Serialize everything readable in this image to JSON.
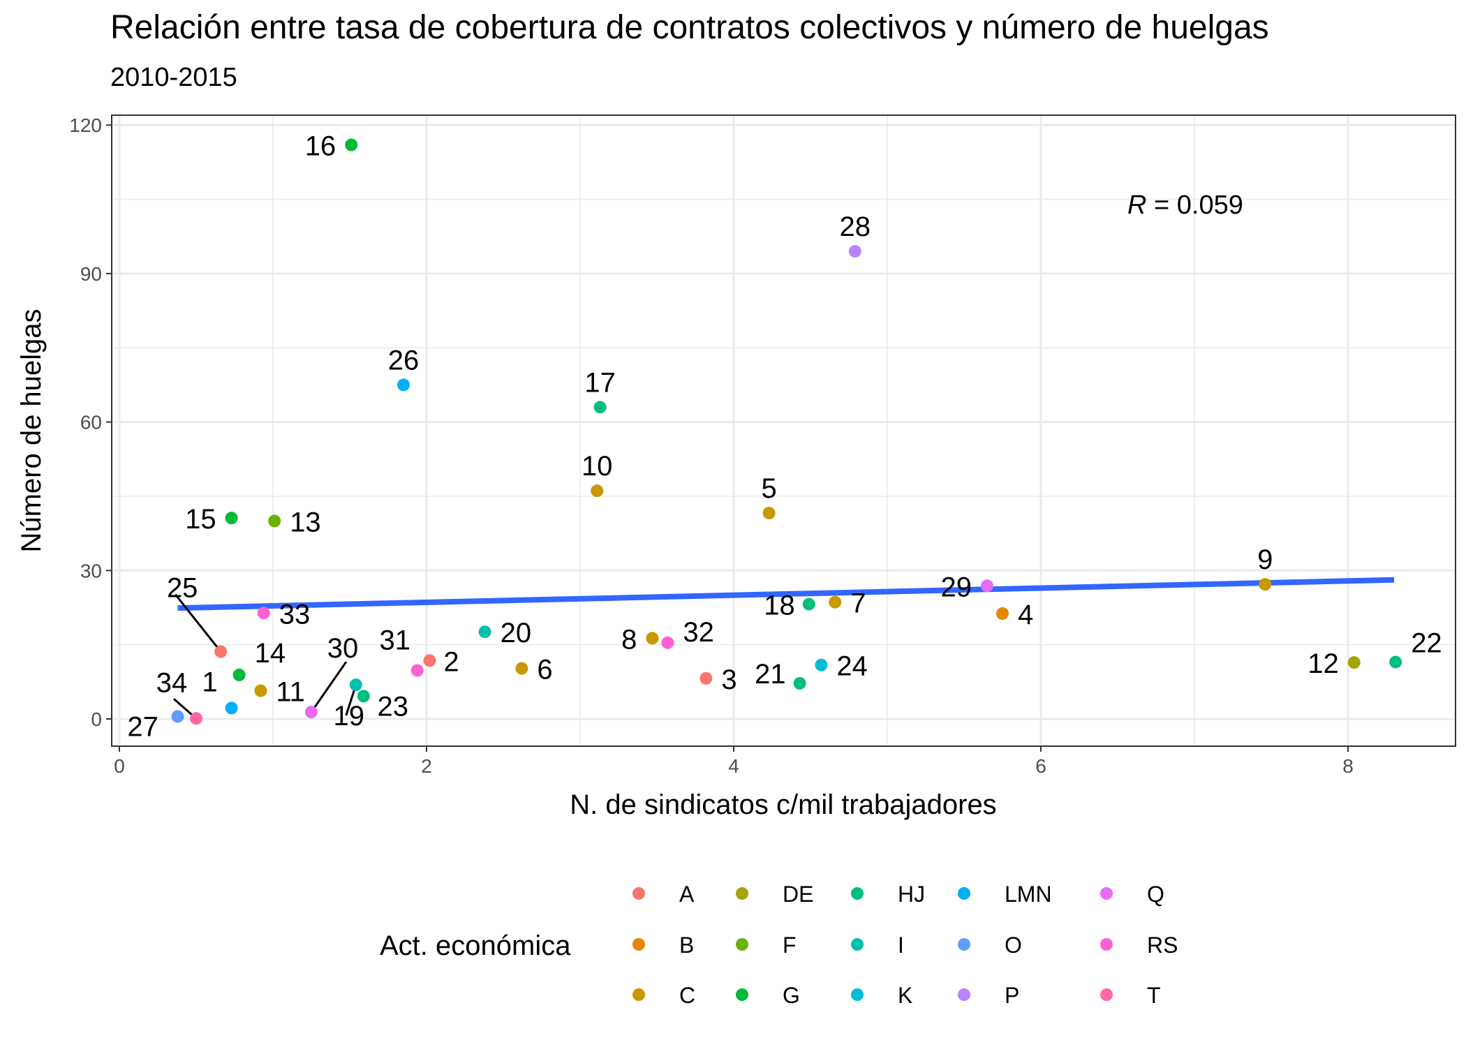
{
  "chart_data": {
    "type": "scatter",
    "title": "Relación entre tasa de cobertura de contratos colectivos y número de huelgas",
    "subtitle": "2010-2015",
    "xlabel": "N. de sindicatos c/mil trabajadores",
    "ylabel": "Número de huelgas",
    "xlim": [
      -0.05,
      8.7
    ],
    "ylim": [
      -5.5,
      122
    ],
    "xticks": [
      0,
      2,
      4,
      6,
      8
    ],
    "yticks": [
      0,
      30,
      60,
      90,
      120
    ],
    "grid": true,
    "annotation": {
      "prefix": "R",
      "text": " = 0.059"
    },
    "trend": {
      "x": [
        0.38,
        8.3
      ],
      "y": [
        22.4,
        28.1
      ],
      "color": "#3366FF"
    },
    "legend": {
      "title": "Act. económica",
      "position": "bottom",
      "categories": [
        {
          "name": "A",
          "color": "#F8766D"
        },
        {
          "name": "B",
          "color": "#E58700"
        },
        {
          "name": "C",
          "color": "#C99800"
        },
        {
          "name": "DE",
          "color": "#A3A500"
        },
        {
          "name": "F",
          "color": "#6BB100"
        },
        {
          "name": "G",
          "color": "#00BA38"
        },
        {
          "name": "HJ",
          "color": "#00BF7D"
        },
        {
          "name": "I",
          "color": "#00C0AF"
        },
        {
          "name": "K",
          "color": "#00BCD8"
        },
        {
          "name": "LMN",
          "color": "#00B0F6"
        },
        {
          "name": "O",
          "color": "#619CFF"
        },
        {
          "name": "P",
          "color": "#B983FF"
        },
        {
          "name": "Q",
          "color": "#E76BF3"
        },
        {
          "name": "RS",
          "color": "#FD61D1"
        },
        {
          "name": "T",
          "color": "#FF67A4"
        }
      ]
    },
    "points": [
      {
        "id": "1",
        "cat": "LMN",
        "x": 0.73,
        "y": 2.2
      },
      {
        "id": "2",
        "cat": "A",
        "x": 2.02,
        "y": 11.8
      },
      {
        "id": "3",
        "cat": "A",
        "x": 3.82,
        "y": 8.2
      },
      {
        "id": "4",
        "cat": "B",
        "x": 5.75,
        "y": 21.3
      },
      {
        "id": "5",
        "cat": "C",
        "x": 4.23,
        "y": 41.6
      },
      {
        "id": "6",
        "cat": "C",
        "x": 2.62,
        "y": 10.2
      },
      {
        "id": "7",
        "cat": "C",
        "x": 4.66,
        "y": 23.6
      },
      {
        "id": "8",
        "cat": "C",
        "x": 3.47,
        "y": 16.3
      },
      {
        "id": "9",
        "cat": "C",
        "x": 7.46,
        "y": 27.2
      },
      {
        "id": "10",
        "cat": "C",
        "x": 3.11,
        "y": 46.1
      },
      {
        "id": "11",
        "cat": "C",
        "x": 0.92,
        "y": 5.7
      },
      {
        "id": "12",
        "cat": "DE",
        "x": 8.04,
        "y": 11.4
      },
      {
        "id": "13",
        "cat": "F",
        "x": 1.01,
        "y": 40.0
      },
      {
        "id": "14",
        "cat": "G",
        "x": 0.78,
        "y": 8.9
      },
      {
        "id": "15",
        "cat": "G",
        "x": 0.73,
        "y": 40.6
      },
      {
        "id": "16",
        "cat": "G",
        "x": 1.51,
        "y": 116.0
      },
      {
        "id": "17",
        "cat": "HJ",
        "x": 3.13,
        "y": 63.0
      },
      {
        "id": "18",
        "cat": "HJ",
        "x": 4.49,
        "y": 23.2
      },
      {
        "id": "19",
        "cat": "I",
        "x": 1.54,
        "y": 6.9
      },
      {
        "id": "20",
        "cat": "I",
        "x": 2.38,
        "y": 17.6
      },
      {
        "id": "21",
        "cat": "HJ",
        "x": 4.43,
        "y": 7.2
      },
      {
        "id": "22",
        "cat": "HJ",
        "x": 8.31,
        "y": 11.5
      },
      {
        "id": "23",
        "cat": "HJ",
        "x": 1.59,
        "y": 4.6
      },
      {
        "id": "24",
        "cat": "K",
        "x": 4.57,
        "y": 10.9
      },
      {
        "id": "25",
        "cat": "A",
        "x": 0.66,
        "y": 13.6
      },
      {
        "id": "26",
        "cat": "LMN",
        "x": 1.85,
        "y": 67.5
      },
      {
        "id": "27",
        "cat": "O",
        "x": 0.38,
        "y": 0.5
      },
      {
        "id": "28",
        "cat": "P",
        "x": 4.79,
        "y": 94.5
      },
      {
        "id": "29",
        "cat": "Q",
        "x": 5.65,
        "y": 26.9
      },
      {
        "id": "30",
        "cat": "Q",
        "x": 1.25,
        "y": 1.4
      },
      {
        "id": "31",
        "cat": "RS",
        "x": 1.94,
        "y": 9.8
      },
      {
        "id": "32",
        "cat": "RS",
        "x": 3.57,
        "y": 15.4
      },
      {
        "id": "33",
        "cat": "RS",
        "x": 0.94,
        "y": 21.4
      },
      {
        "id": "34",
        "cat": "T",
        "x": 0.5,
        "y": 0.1
      }
    ]
  }
}
